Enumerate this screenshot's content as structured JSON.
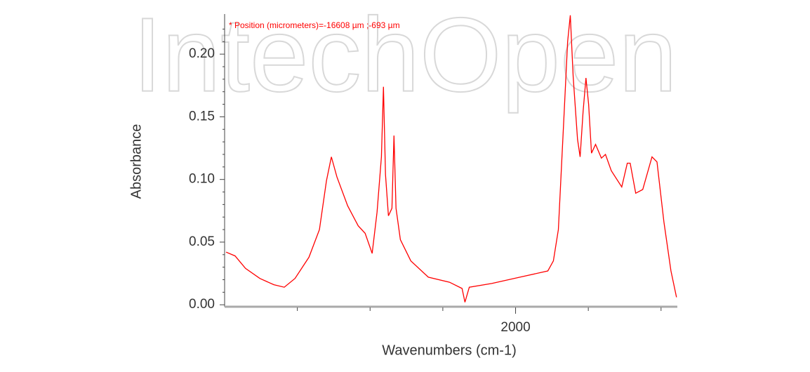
{
  "watermark": "IntechOpen",
  "chart_data": {
    "type": "line",
    "annotation": "* Position (micrometers)=-16608 µm ;-693 µm",
    "xlabel": "Wavenumbers (cm-1)",
    "ylabel": "Absorbance",
    "xlim": [
      1000,
      2556
    ],
    "ylim": [
      -0.001,
      0.232
    ],
    "xticks": [
      2000
    ],
    "xminor_ticks": [
      1250,
      1500,
      1750,
      2000,
      2250,
      2500
    ],
    "yticks": [
      {
        "value": 0,
        "label": "0.00"
      },
      {
        "value": 0.05,
        "label": "0.05"
      },
      {
        "value": 0.1,
        "label": "0.10"
      },
      {
        "value": 0.15,
        "label": "0.15"
      },
      {
        "value": 0.2,
        "label": "0.20"
      }
    ],
    "yminor_ticks": [
      0.01,
      0.02,
      0.03,
      0.04,
      0.06,
      0.07,
      0.08,
      0.09,
      0.11,
      0.12,
      0.13,
      0.14,
      0.16,
      0.17,
      0.18,
      0.19,
      0.21,
      0.22
    ],
    "x": [
      1005,
      1036,
      1072,
      1121,
      1169,
      1205,
      1242,
      1290,
      1326,
      1350,
      1367,
      1386,
      1423,
      1459,
      1483,
      1507,
      1524,
      1539,
      1546,
      1553,
      1563,
      1575,
      1582,
      1589,
      1604,
      1640,
      1700,
      1773,
      1816,
      1826,
      1841,
      1918,
      2015,
      2111,
      2130,
      2147,
      2167,
      2179,
      2188,
      2198,
      2213,
      2222,
      2232,
      2242,
      2251,
      2261,
      2275,
      2295,
      2309,
      2329,
      2365,
      2384,
      2394,
      2413,
      2437,
      2469,
      2486,
      2510,
      2534,
      2553
    ],
    "series": [
      {
        "color": "#ff0000",
        "values": [
          0.042,
          0.039,
          0.029,
          0.021,
          0.016,
          0.014,
          0.021,
          0.038,
          0.06,
          0.099,
          0.118,
          0.102,
          0.079,
          0.063,
          0.057,
          0.041,
          0.074,
          0.118,
          0.174,
          0.104,
          0.071,
          0.077,
          0.135,
          0.077,
          0.052,
          0.035,
          0.022,
          0.018,
          0.013,
          0.002,
          0.014,
          0.017,
          0.022,
          0.027,
          0.035,
          0.06,
          0.154,
          0.21,
          0.231,
          0.182,
          0.132,
          0.118,
          0.154,
          0.181,
          0.16,
          0.121,
          0.128,
          0.117,
          0.12,
          0.107,
          0.094,
          0.113,
          0.113,
          0.089,
          0.092,
          0.118,
          0.114,
          0.066,
          0.027,
          0.006
        ]
      }
    ]
  }
}
